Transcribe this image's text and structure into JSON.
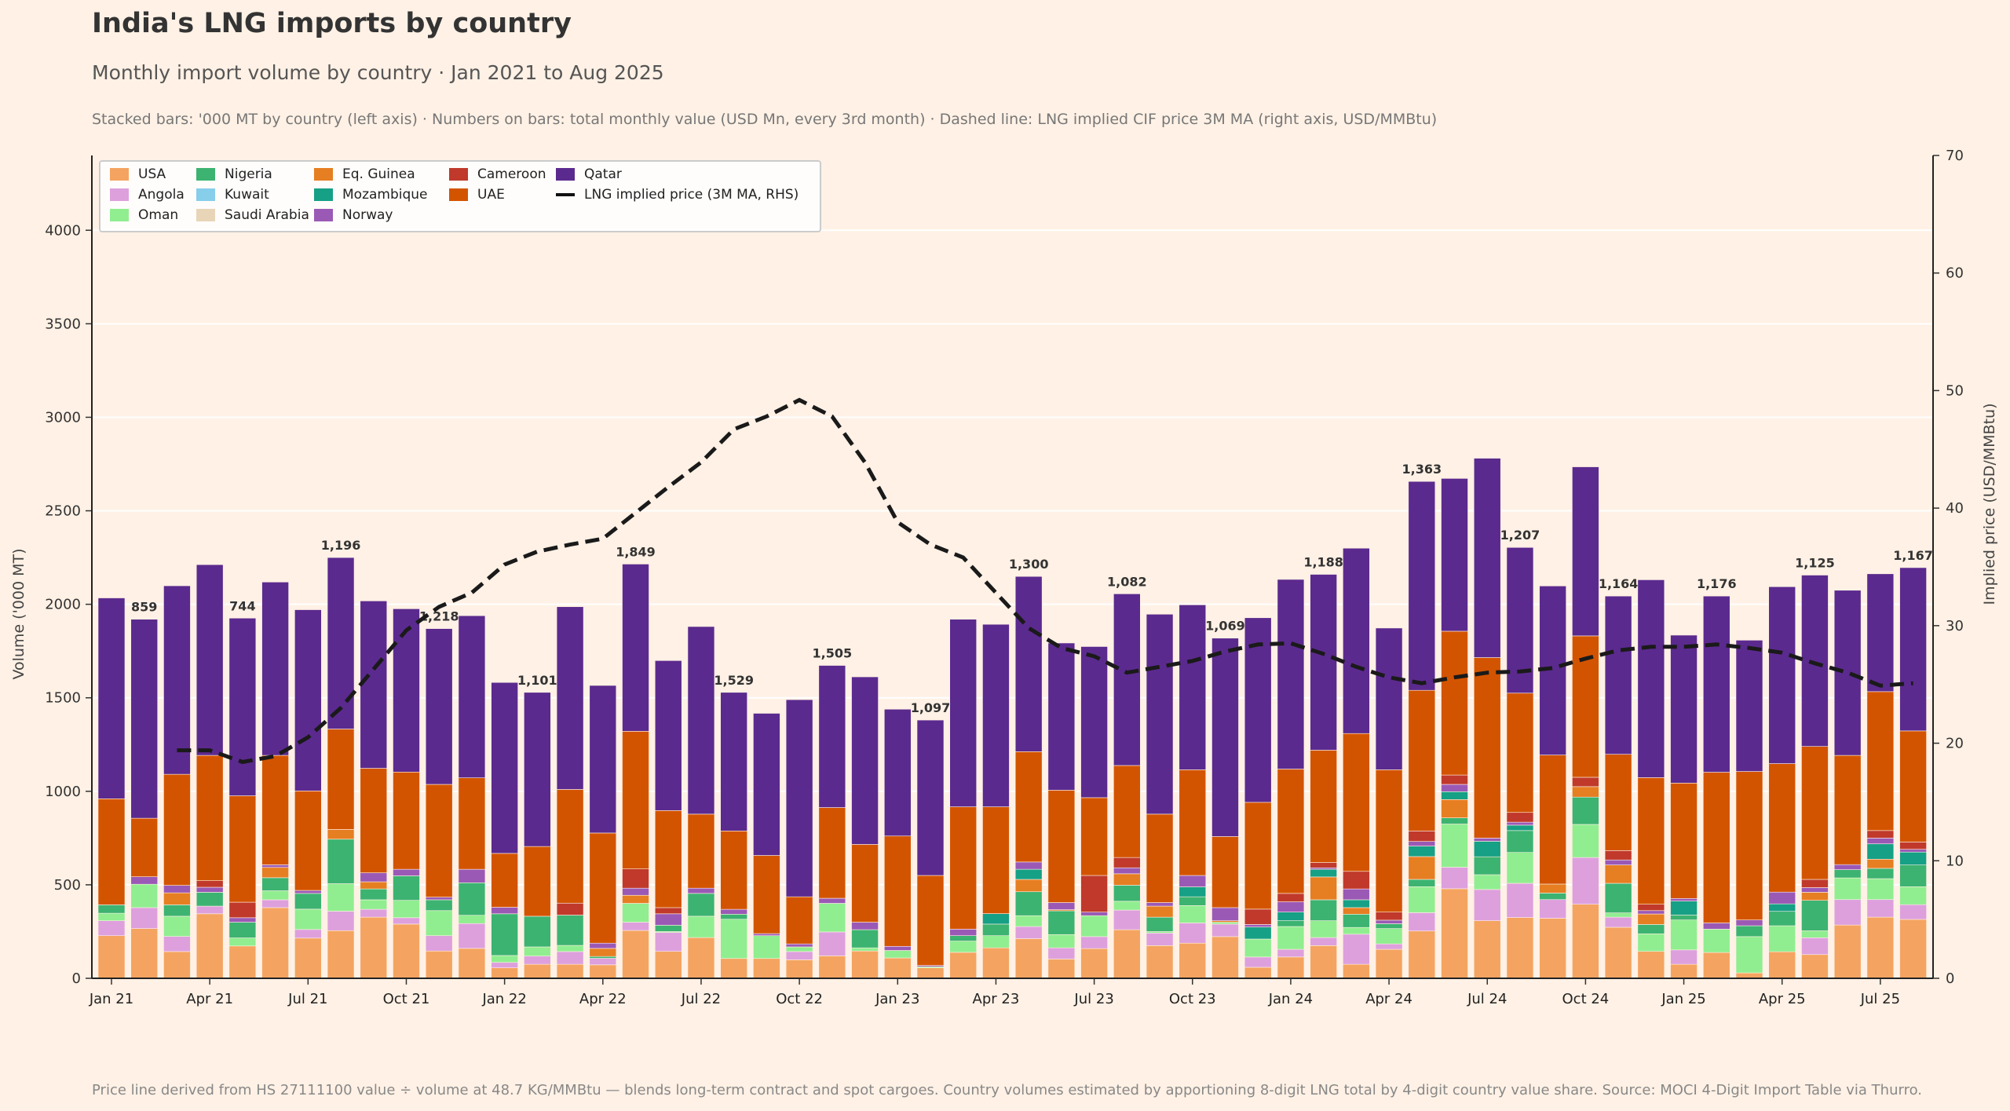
{
  "header": {
    "title": "India's LNG imports by country",
    "subtitle": "Monthly import volume by country  ·  Jan 2021 to Aug 2025",
    "note": "Stacked bars: '000 MT by country (left axis)  ·  Numbers on bars: total monthly value (USD Mn, every 3rd month)  ·  Dashed line: LNG implied CIF price 3M MA (right axis, USD/MMBtu)"
  },
  "footer": "Price line derived from HS 27111100 value ÷ volume at 48.7 KG/MMBtu — blends long-term contract and spot cargoes.  Country volumes estimated by apportioning 8-digit LNG total by 4-digit country value share.  Source: MOCI 4-Digit Import Table via Thurro.",
  "chart_data": {
    "type": "bar",
    "stacked": true,
    "ylabel": "Volume ('000 MT)",
    "y2label": "Implied price (USD/MMBtu)",
    "ylim": [
      0,
      4400
    ],
    "y2lim": [
      0,
      70
    ],
    "yticks": [
      "0",
      "500",
      "1000",
      "1500",
      "2000",
      "2500",
      "3000",
      "3500",
      "4000"
    ],
    "y2ticks": [
      "0",
      "10",
      "20",
      "30",
      "40",
      "50",
      "60",
      "70"
    ],
    "grid": "horizontal",
    "legend": "top-left",
    "categories": [
      "Jan 21",
      "Feb 21",
      "Mar 21",
      "Apr 21",
      "May 21",
      "Jun 21",
      "Jul 21",
      "Aug 21",
      "Sep 21",
      "Oct 21",
      "Nov 21",
      "Dec 21",
      "Jan 22",
      "Feb 22",
      "Mar 22",
      "Apr 22",
      "May 22",
      "Jun 22",
      "Jul 22",
      "Aug 22",
      "Sep 22",
      "Oct 22",
      "Nov 22",
      "Dec 22",
      "Jan 23",
      "Feb 23",
      "Mar 23",
      "Apr 23",
      "May 23",
      "Jun 23",
      "Jul 23",
      "Aug 23",
      "Sep 23",
      "Oct 23",
      "Nov 23",
      "Dec 23",
      "Jan 24",
      "Feb 24",
      "Mar 24",
      "Apr 24",
      "May 24",
      "Jun 24",
      "Jul 24",
      "Aug 24",
      "Sep 24",
      "Oct 24",
      "Nov 24",
      "Dec 24",
      "Jan 25",
      "Feb 25",
      "Mar 25",
      "Apr 25",
      "May 25",
      "Jun 25",
      "Jul 25",
      "Aug 25"
    ],
    "xtick_labels": [
      "Jan 21",
      "Apr 21",
      "Jul 21",
      "Oct 21",
      "Jan 22",
      "Apr 22",
      "Jul 22",
      "Oct 22",
      "Jan 23",
      "Apr 23",
      "Jul 23",
      "Oct 23",
      "Jan 24",
      "Apr 24",
      "Jul 24",
      "Oct 24",
      "Jan 25",
      "Apr 25",
      "Jul 25"
    ],
    "series": [
      {
        "name": "USA",
        "color": "#f4a460",
        "values": [
          228,
          266,
          143,
          345,
          173,
          378,
          215,
          255,
          327,
          290,
          146,
          160,
          56,
          75,
          75,
          72,
          256,
          144,
          218,
          106,
          106,
          99,
          120,
          146,
          109,
          56,
          139,
          163,
          212,
          103,
          159,
          260,
          175,
          188,
          223,
          59,
          114,
          175,
          75,
          155,
          253,
          479,
          308,
          325,
          321,
          396,
          273,
          144,
          75,
          138,
          29,
          142,
          127,
          285,
          327,
          315
        ]
      },
      {
        "name": "Angola",
        "color": "#dda0dd",
        "values": [
          80,
          112,
          81,
          41,
          0,
          42,
          46,
          104,
          42,
          34,
          82,
          133,
          29,
          44,
          68,
          35,
          44,
          101,
          0,
          0,
          0,
          44,
          128,
          0,
          0,
          0,
          0,
          0,
          65,
          60,
          64,
          105,
          67,
          108,
          67,
          55,
          41,
          43,
          161,
          29,
          98,
          115,
          167,
          183,
          100,
          250,
          54,
          0,
          77,
          0,
          0,
          0,
          90,
          136,
          94,
          79
        ]
      },
      {
        "name": "Oman",
        "color": "#90ee90",
        "values": [
          40,
          125,
          108,
          0,
          43,
          48,
          109,
          147,
          51,
          93,
          134,
          44,
          37,
          49,
          33,
          0,
          101,
          5,
          114,
          210,
          122,
          25,
          153,
          17,
          40,
          6,
          60,
          65,
          58,
          71,
          112,
          47,
          8,
          93,
          10,
          96,
          122,
          90,
          36,
          82,
          139,
          231,
          79,
          165,
          0,
          177,
          23,
          94,
          160,
          125,
          194,
          139,
          37,
          116,
          112,
          96
        ]
      },
      {
        "name": "Nigeria",
        "color": "#3cb371",
        "values": [
          45,
          0,
          61,
          74,
          84,
          70,
          84,
          238,
          58,
          131,
          58,
          174,
          223,
          164,
          162,
          10,
          0,
          34,
          122,
          27,
          0,
          0,
          0,
          97,
          0,
          0,
          29,
          62,
          128,
          127,
          0,
          86,
          77,
          47,
          0,
          0,
          31,
          112,
          71,
          26,
          39,
          33,
          96,
          117,
          35,
          146,
          158,
          50,
          26,
          0,
          58,
          77,
          163,
          44,
          55,
          116
        ]
      },
      {
        "name": "Kuwait",
        "color": "#87ceeb",
        "values": [
          0,
          0,
          0,
          0,
          0,
          0,
          0,
          0,
          0,
          0,
          0,
          0,
          0,
          0,
          0,
          0,
          0,
          0,
          0,
          0,
          0,
          0,
          0,
          0,
          0,
          0,
          0,
          0,
          0,
          0,
          0,
          0,
          0,
          0,
          0,
          0,
          0,
          0,
          0,
          0,
          0,
          0,
          0,
          0,
          0,
          0,
          0,
          0,
          0,
          0,
          0,
          0,
          0,
          0,
          0,
          0
        ]
      },
      {
        "name": "Saudi Arabia",
        "color": "#e8d5b7",
        "values": [
          0,
          0,
          0,
          0,
          0,
          0,
          0,
          0,
          0,
          0,
          0,
          0,
          0,
          0,
          0,
          0,
          0,
          0,
          0,
          0,
          0,
          0,
          0,
          0,
          0,
          0,
          0,
          0,
          0,
          0,
          0,
          0,
          0,
          0,
          0,
          0,
          0,
          0,
          0,
          0,
          0,
          0,
          0,
          0,
          0,
          0,
          0,
          0,
          0,
          0,
          0,
          0,
          0,
          0,
          0,
          0
        ]
      },
      {
        "name": "Eq. Guinea",
        "color": "#e67e22",
        "values": [
          0,
          0,
          64,
          0,
          0,
          55,
          0,
          52,
          38,
          0,
          0,
          0,
          0,
          0,
          0,
          43,
          43,
          0,
          0,
          0,
          0,
          0,
          0,
          0,
          0,
          0,
          0,
          0,
          66,
          6,
          0,
          61,
          59,
          0,
          8,
          0,
          0,
          122,
          35,
          0,
          122,
          98,
          0,
          0,
          48,
          56,
          98,
          56,
          0,
          0,
          0,
          0,
          43,
          0,
          49,
          0
        ]
      },
      {
        "name": "Mozambique",
        "color": "#16a085",
        "values": [
          0,
          0,
          0,
          0,
          0,
          0,
          0,
          0,
          0,
          0,
          0,
          0,
          0,
          0,
          0,
          0,
          0,
          0,
          0,
          0,
          0,
          0,
          0,
          0,
          0,
          0,
          0,
          56,
          54,
          0,
          0,
          0,
          0,
          53,
          0,
          64,
          46,
          41,
          42,
          0,
          56,
          42,
          83,
          29,
          0,
          0,
          0,
          0,
          75,
          0,
          0,
          40,
          0,
          0,
          82,
          69
        ]
      },
      {
        "name": "Norway",
        "color": "#9b59b6",
        "values": [
          0,
          40,
          40,
          27,
          24,
          14,
          16,
          0,
          48,
          35,
          14,
          72,
          35,
          0,
          0,
          28,
          38,
          61,
          28,
          26,
          11,
          16,
          27,
          40,
          22,
          7,
          35,
          0,
          39,
          38,
          19,
          32,
          19,
          61,
          70,
          14,
          55,
          8,
          58,
          19,
          25,
          39,
          17,
          16,
          0,
          0,
          27,
          18,
          14,
          33,
          31,
          63,
          25,
          27,
          31,
          15
        ]
      },
      {
        "name": "Cameroon",
        "color": "#c0392b",
        "values": [
          0,
          0,
          0,
          35,
          83,
          0,
          0,
          0,
          0,
          0,
          0,
          0,
          0,
          0,
          64,
          0,
          103,
          33,
          0,
          0,
          0,
          0,
          0,
          0,
          0,
          0,
          0,
          0,
          0,
          0,
          196,
          55,
          0,
          0,
          0,
          82,
          45,
          28,
          94,
          43,
          56,
          50,
          0,
          52,
          0,
          50,
          50,
          34,
          0,
          0,
          0,
          0,
          44,
          0,
          40,
          39
        ]
      },
      {
        "name": "UAE",
        "color": "#d35400",
        "values": [
          567,
          313,
          594,
          670,
          569,
          585,
          532,
          537,
          559,
          520,
          603,
          489,
          288,
          373,
          608,
          589,
          736,
          519,
          396,
          419,
          418,
          252,
          485,
          416,
          590,
          481,
          654,
          571,
          590,
          601,
          416,
          492,
          473,
          565,
          380,
          571,
          665,
          601,
          737,
          761,
          752,
          769,
          965,
          638,
          690,
          756,
          515,
          677,
          617,
          806,
          794,
          687,
          711,
          584,
          743,
          594
        ]
      },
      {
        "name": "Qatar",
        "color": "#5b2a8e",
        "values": [
          1074,
          1064,
          1008,
          1020,
          950,
          927,
          969,
          917,
          895,
          873,
          833,
          867,
          914,
          824,
          977,
          789,
          894,
          802,
          1003,
          741,
          760,
          1054,
          760,
          896,
          678,
          831,
          1003,
          976,
          937,
          787,
          808,
          918,
          1069,
          882,
          1061,
          987,
          1014,
          940,
          991,
          758,
          1117,
          817,
          1066,
          779,
          904,
          904,
          846,
          1058,
          791,
          942,
          702,
          946,
          916,
          883,
          630,
          873
        ]
      }
    ],
    "price_line": {
      "name": "LNG implied price (3M MA, RHS)",
      "color": "#1a1a1a",
      "axis": "right",
      "values": [
        null,
        null,
        19.4,
        19.4,
        18.4,
        18.9,
        20.5,
        23.0,
        26.3,
        29.6,
        31.6,
        32.8,
        35.2,
        36.3,
        36.9,
        37.4,
        39.6,
        41.8,
        43.9,
        46.7,
        47.8,
        49.2,
        47.8,
        43.9,
        38.8,
        36.9,
        35.8,
        32.8,
        29.8,
        28.1,
        27.4,
        26.0,
        26.5,
        27.0,
        27.8,
        28.4,
        28.5,
        27.6,
        26.5,
        25.6,
        25.1,
        25.6,
        26.0,
        26.1,
        26.4,
        27.2,
        27.9,
        28.2,
        28.2,
        28.4,
        28.1,
        27.7,
        26.8,
        26.0,
        24.9,
        25.1
      ]
    },
    "value_labels": [
      null,
      "859",
      null,
      null,
      "744",
      null,
      null,
      "1,196",
      null,
      null,
      "1,218",
      null,
      null,
      "1,101",
      null,
      null,
      "1,849",
      null,
      null,
      "1,529",
      null,
      null,
      "1,505",
      null,
      null,
      "1,097",
      null,
      null,
      "1,300",
      null,
      null,
      "1,082",
      null,
      null,
      "1,069",
      null,
      null,
      "1,188",
      null,
      null,
      "1,363",
      null,
      null,
      "1,207",
      null,
      null,
      "1,164",
      null,
      null,
      "1,176",
      null,
      null,
      "1,125",
      null,
      null,
      "1,167"
    ]
  }
}
